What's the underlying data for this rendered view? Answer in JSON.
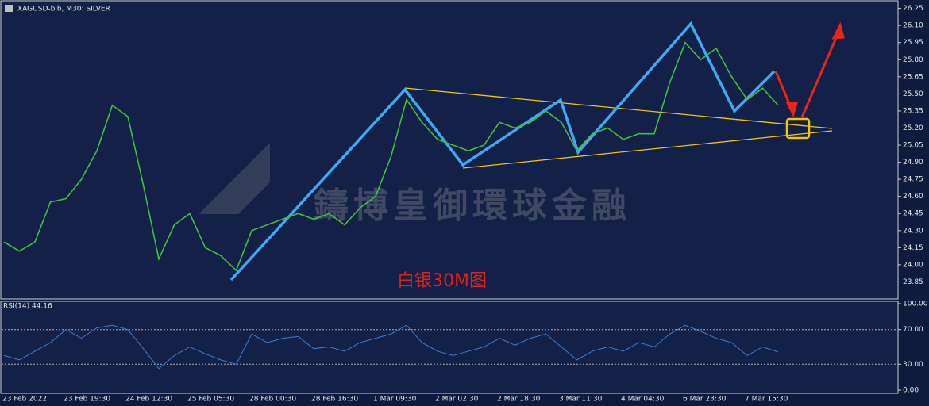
{
  "chart_data": [
    {
      "type": "line",
      "title": "XAGUSD-bib, M30:  SILVER",
      "watermark": "鑄博皇御環球金融",
      "annotation": "白银30M图",
      "categories": [
        "23 Feb 2022",
        null,
        null,
        null,
        "23 Feb 19:30",
        null,
        null,
        null,
        "24 Feb 12:30",
        null,
        null,
        null,
        "25 Feb 05:30",
        null,
        null,
        null,
        "28 Feb 00:30",
        null,
        null,
        null,
        "28 Feb 16:30",
        null,
        null,
        null,
        "1 Mar 09:30",
        null,
        null,
        null,
        "2 Mar 02:30",
        null,
        null,
        null,
        "2 Mar 18:30",
        null,
        null,
        null,
        "3 Mar 11:30",
        null,
        null,
        null,
        "4 Mar 04:30",
        null,
        null,
        null,
        "6 Mar 23:30",
        null,
        null,
        null,
        "7 Mar 15:30",
        null,
        null
      ],
      "series": [
        {
          "name": "XAGUSD",
          "color": "#3fbf3f",
          "values": [
            24.2,
            24.12,
            24.2,
            24.55,
            24.58,
            24.75,
            25.0,
            25.4,
            25.3,
            24.7,
            24.05,
            24.35,
            24.45,
            24.15,
            24.08,
            23.95,
            24.3,
            24.35,
            24.4,
            24.45,
            24.4,
            24.45,
            24.35,
            24.5,
            24.6,
            24.95,
            25.45,
            25.25,
            25.1,
            25.05,
            25.0,
            25.05,
            25.25,
            25.2,
            25.25,
            25.35,
            25.25,
            25.0,
            25.15,
            25.2,
            25.1,
            25.15,
            25.15,
            25.6,
            25.95,
            25.8,
            25.9,
            25.65,
            25.45,
            25.55,
            25.4
          ]
        }
      ],
      "ylim": [
        23.7,
        26.31
      ],
      "yticks": [
        {
          "value": 26.25,
          "label": "26.25"
        },
        {
          "value": 26.1,
          "label": "26.10"
        },
        {
          "value": 25.95,
          "label": "25.95"
        },
        {
          "value": 25.8,
          "label": "25.80"
        },
        {
          "value": 25.65,
          "label": "25.65"
        },
        {
          "value": 25.5,
          "label": "25.50"
        },
        {
          "value": 25.35,
          "label": "25.35"
        },
        {
          "value": 25.2,
          "label": "25.20"
        },
        {
          "value": 25.05,
          "label": "25.05"
        },
        {
          "value": 24.9,
          "label": "24.90"
        },
        {
          "value": 24.75,
          "label": "24.75"
        },
        {
          "value": 24.6,
          "label": "24.60"
        },
        {
          "value": 24.45,
          "label": "24.45"
        },
        {
          "value": 24.3,
          "label": "24.30"
        },
        {
          "value": 24.15,
          "label": "24.15"
        },
        {
          "value": 24.0,
          "label": "24.00"
        },
        {
          "value": 23.85,
          "label": "23.85"
        }
      ]
    },
    {
      "type": "line",
      "title": "RSI(14) 44.16",
      "series": [
        {
          "name": "RSI(14)",
          "color": "#3a7bd5",
          "values": [
            40,
            35,
            45,
            55,
            70,
            60,
            72,
            75,
            70,
            48,
            25,
            40,
            50,
            42,
            35,
            30,
            65,
            55,
            60,
            62,
            48,
            50,
            45,
            55,
            60,
            65,
            75,
            55,
            45,
            40,
            45,
            50,
            60,
            52,
            60,
            65,
            50,
            35,
            45,
            50,
            45,
            55,
            50,
            65,
            75,
            68,
            60,
            55,
            40,
            50,
            44.16
          ]
        }
      ],
      "ylim": [
        0,
        100
      ],
      "yticks": [
        {
          "value": 100,
          "label": "100.00"
        },
        {
          "value": 70,
          "label": "70.00"
        },
        {
          "value": 30,
          "label": "30.00"
        },
        {
          "value": 0,
          "label": "0.00"
        }
      ],
      "dashed": [
        70,
        30
      ]
    }
  ]
}
